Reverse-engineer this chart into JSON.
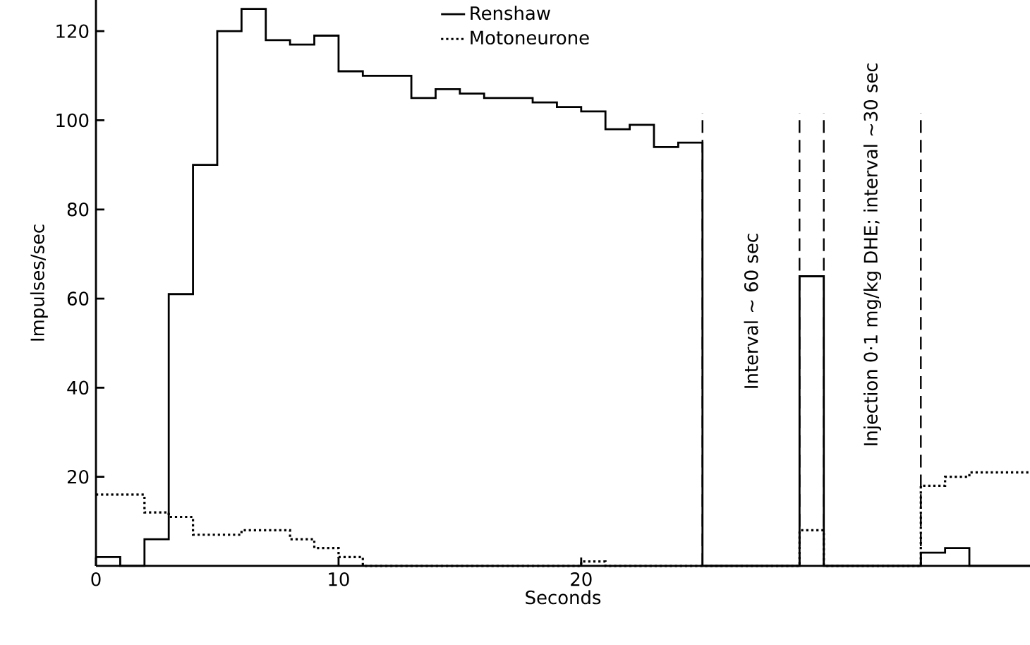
{
  "chart_data": {
    "type": "step",
    "xlabel": "Seconds",
    "ylabel": "Impulses/sec",
    "xlim": [
      0,
      38.5
    ],
    "ylim": [
      0,
      127
    ],
    "xticks": [
      0,
      10,
      20
    ],
    "yticks": [
      20,
      40,
      60,
      80,
      100,
      120
    ],
    "legend": "top",
    "series": [
      {
        "name": "Renshaw",
        "color": "#000000",
        "line_style": "solid",
        "x": [
          0,
          1,
          2,
          3,
          4,
          5,
          6,
          7,
          8,
          9,
          10,
          11,
          12,
          13,
          14,
          15,
          16,
          17,
          18,
          19,
          20,
          21,
          22,
          23,
          24,
          25,
          29,
          30,
          34,
          35,
          36,
          38.5
        ],
        "values": [
          2,
          0,
          6,
          61,
          90,
          120,
          125,
          118,
          117,
          119,
          111,
          110,
          110,
          105,
          107,
          106,
          105,
          105,
          104,
          103,
          102,
          98,
          99,
          94,
          95,
          0,
          65,
          0,
          3,
          4,
          0,
          0
        ]
      },
      {
        "name": "Motoneurone",
        "color": "#000000",
        "line_style": "dotted",
        "x": [
          0,
          2,
          3,
          4,
          6,
          8,
          9,
          10,
          11,
          20,
          21,
          25,
          29,
          30,
          34,
          35,
          36,
          38.5
        ],
        "values": [
          16,
          12,
          11,
          7,
          8,
          6,
          4,
          2,
          0,
          1,
          0,
          0,
          8,
          0,
          18,
          20,
          21,
          21
        ]
      }
    ],
    "ref_lines": [
      {
        "axis": "x",
        "value": 25,
        "line_style": "dashed"
      },
      {
        "axis": "x",
        "value": 29,
        "line_style": "dashed"
      },
      {
        "axis": "x",
        "value": 30,
        "line_style": "dashed"
      },
      {
        "axis": "x",
        "value": 34,
        "line_style": "dashed"
      }
    ],
    "annotations": [
      "Interval ∼ 60 sec",
      "Injection 0·1 mg/kg DHE; interval ∼30 sec"
    ]
  }
}
